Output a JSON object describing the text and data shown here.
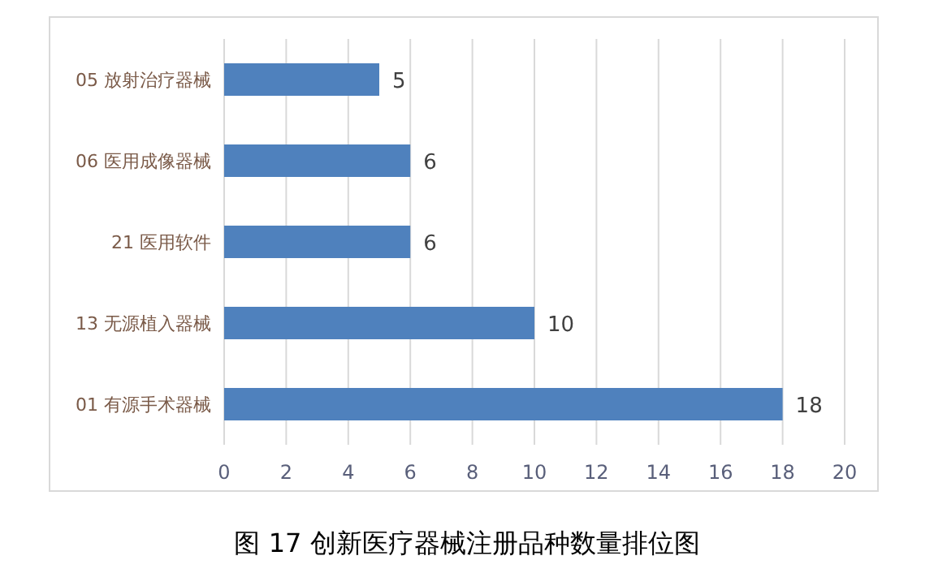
{
  "chart_data": {
    "type": "bar",
    "orientation": "horizontal",
    "title": "图 17  创新医疗器械注册品种数量排位图",
    "categories": [
      "05 放射治疗器械",
      "06 医用成像器械",
      "21 医用软件",
      "13 无源植入器械",
      "01 有源手术器械"
    ],
    "values": [
      5,
      6,
      6,
      10,
      18
    ],
    "color": "#4f81bd",
    "xlim": [
      0,
      20
    ],
    "xticks": [
      0,
      2,
      4,
      6,
      8,
      10,
      12,
      14,
      16,
      18,
      20
    ],
    "grid": "x",
    "data_labels": true
  }
}
